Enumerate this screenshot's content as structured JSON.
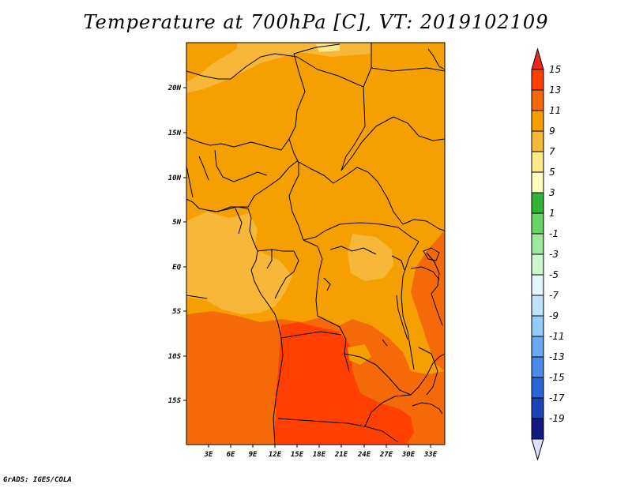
{
  "title": "Temperature at 700hPa [C], VT: 2019102109",
  "credit": "GrADS: IGES/COLA",
  "lat_ticks": [
    "20N",
    "15N",
    "10N",
    "5N",
    "EQ",
    "5S",
    "10S",
    "15S"
  ],
  "lon_ticks": [
    "3E",
    "6E",
    "9E",
    "12E",
    "15E",
    "18E",
    "21E",
    "24E",
    "27E",
    "30E",
    "33E"
  ],
  "colorbar": {
    "labels": [
      "15",
      "13",
      "11",
      "9",
      "7",
      "5",
      "3",
      "1",
      "-1",
      "-3",
      "-5",
      "-7",
      "-9",
      "-11",
      "-13",
      "-15",
      "-17",
      "-19"
    ],
    "colors": [
      "#e8281e",
      "#ff4000",
      "#f56a08",
      "#f5a000",
      "#f7b83a",
      "#fde88a",
      "#fffec0",
      "#34b434",
      "#66d566",
      "#9ee99e",
      "#ccf7cc",
      "#e4f6fb",
      "#bfe2fb",
      "#94cbf7",
      "#6aaaf2",
      "#4a8ae8",
      "#2b66d6",
      "#1a44b8",
      "#101a80",
      "#dde0fa"
    ]
  }
}
